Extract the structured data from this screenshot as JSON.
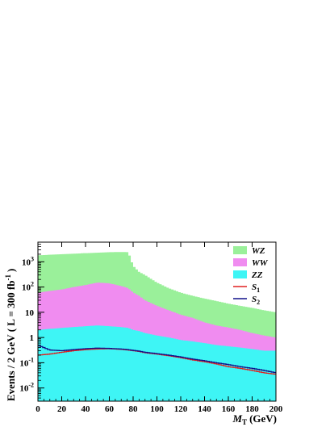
{
  "chart_data": {
    "type": "area",
    "xlabel": "M",
    "xlabel_sub": "T",
    "xlabel_unit": "(GeV)",
    "ylabel_text": "Events / 2 GeV  ( L =  300 fb",
    "ylabel_sup": "-1",
    "ylabel_end": ")",
    "xlim": [
      0,
      200
    ],
    "ylim": [
      0.003,
      6000
    ],
    "yscale": "log",
    "xticks": [
      0,
      20,
      40,
      60,
      80,
      100,
      120,
      140,
      160,
      180,
      200
    ],
    "xtick_labels": [
      "0",
      "20",
      "40",
      "60",
      "80",
      "100",
      "120",
      "140",
      "160",
      "180",
      "200"
    ],
    "ytick_labels": [
      {
        "value": 1000,
        "base": "10",
        "exp": "3"
      },
      {
        "value": 100,
        "base": "10",
        "exp": "2"
      },
      {
        "value": 10,
        "base": "10",
        "exp": ""
      },
      {
        "value": 1,
        "base": "1",
        "exp": ""
      },
      {
        "value": 0.1,
        "base": "10",
        "exp": "-1"
      },
      {
        "value": 0.01,
        "base": "10",
        "exp": "-2"
      }
    ],
    "legend_position": "top-right",
    "x": [
      0,
      10,
      20,
      30,
      40,
      50,
      60,
      70,
      76,
      80,
      85,
      90,
      100,
      110,
      120,
      130,
      140,
      150,
      160,
      170,
      180,
      190,
      200
    ],
    "series": [
      {
        "name": "WZ",
        "sub": "",
        "style": "fill",
        "color": "#9af09a",
        "values": [
          1800,
          1900,
          2000,
          2100,
          2200,
          2300,
          2400,
          2450,
          2400,
          700,
          400,
          300,
          150,
          90,
          60,
          45,
          35,
          28,
          22,
          18,
          15,
          12,
          10
        ]
      },
      {
        "name": "WW",
        "sub": "",
        "style": "fill",
        "color": "#f08cf0",
        "values": [
          60,
          70,
          80,
          100,
          120,
          150,
          140,
          110,
          90,
          60,
          45,
          30,
          18,
          12,
          8,
          6,
          4,
          3,
          2.5,
          2,
          1.5,
          1.2,
          1
        ]
      },
      {
        "name": "ZZ",
        "sub": "",
        "style": "fill",
        "color": "#3ef5f5",
        "values": [
          2,
          2.2,
          2.4,
          2.6,
          2.8,
          3,
          2.8,
          2.6,
          2.4,
          2,
          1.8,
          1.5,
          1.2,
          1,
          0.8,
          0.7,
          0.6,
          0.5,
          0.45,
          0.4,
          0.35,
          0.3,
          0.3
        ]
      },
      {
        "name": "S",
        "sub": "1",
        "style": "line",
        "color": "#e02020",
        "values": [
          0.2,
          0.22,
          0.26,
          0.3,
          0.33,
          0.35,
          0.36,
          0.34,
          0.32,
          0.3,
          0.28,
          0.25,
          0.22,
          0.19,
          0.16,
          0.13,
          0.11,
          0.09,
          0.07,
          0.06,
          0.05,
          0.04,
          0.035
        ]
      },
      {
        "name": "S",
        "sub": "2",
        "style": "line",
        "color": "#10108a",
        "values": [
          0.5,
          0.32,
          0.3,
          0.33,
          0.36,
          0.38,
          0.37,
          0.35,
          0.33,
          0.31,
          0.29,
          0.26,
          0.23,
          0.2,
          0.17,
          0.14,
          0.12,
          0.1,
          0.085,
          0.07,
          0.06,
          0.05,
          0.04
        ]
      }
    ]
  }
}
